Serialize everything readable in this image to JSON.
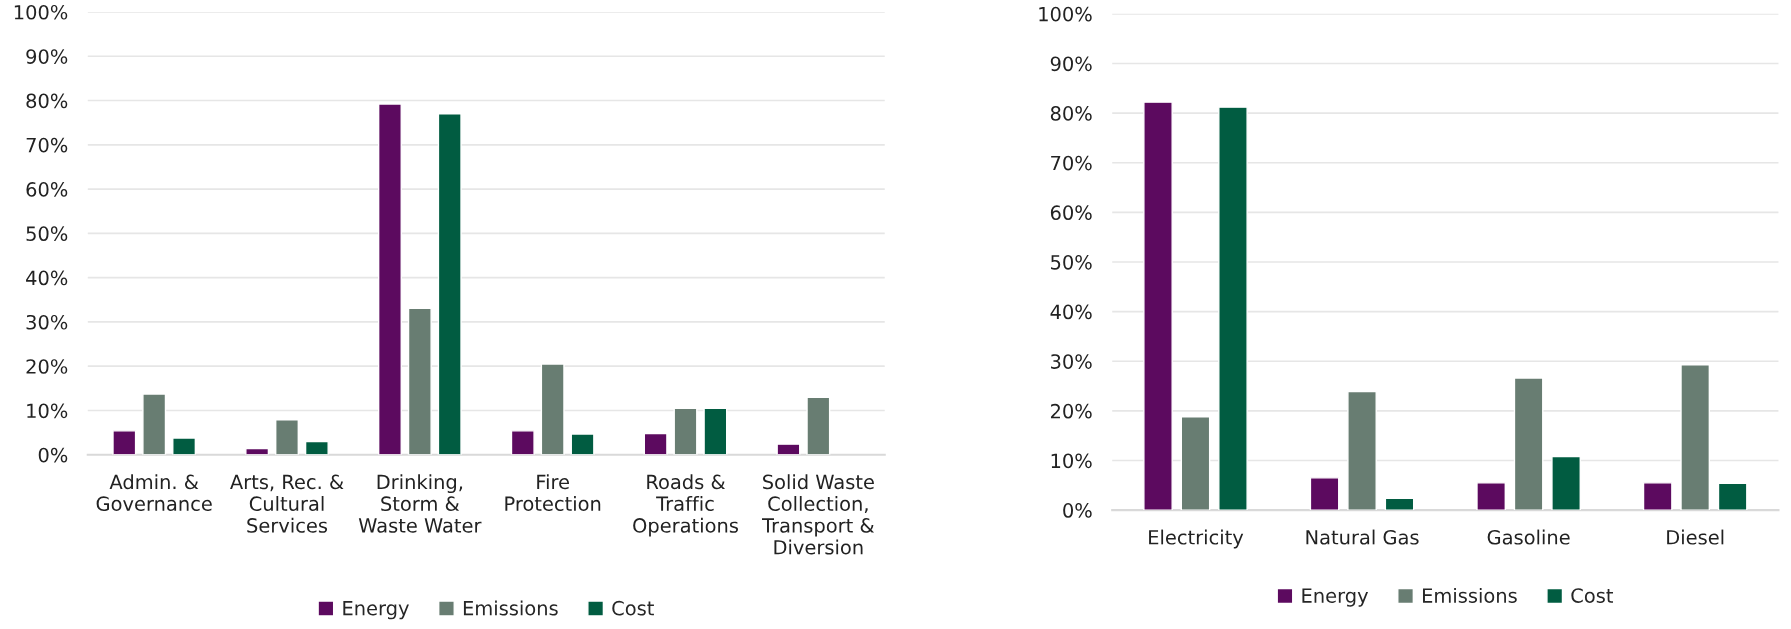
{
  "chart_data": [
    {
      "type": "bar",
      "categories": [
        "Admin. &\nGovernance",
        "Arts, Rec. &\nCultural\nServices",
        "Drinking,\nStorm &\nWaste Water",
        "Fire\nProtection",
        "Roads &\nTraffic\nOperations",
        "Solid Waste\nCollection,\nTransport &\nDiversion"
      ],
      "series": [
        {
          "name": "Energy",
          "color": "#5c0a5f",
          "values": [
            5.4,
            1.4,
            79.2,
            5.4,
            4.8,
            2.4
          ]
        },
        {
          "name": "Emissions",
          "color": "#687d72",
          "values": [
            13.7,
            7.9,
            33.1,
            20.5,
            10.5,
            13.0
          ]
        },
        {
          "name": "Cost",
          "color": "#015c41",
          "values": [
            3.8,
            3.0,
            77.0,
            4.7,
            10.5,
            null
          ]
        }
      ],
      "ylim": [
        0,
        100
      ],
      "yticks": [
        {
          "value": 0,
          "label": "0%"
        },
        {
          "value": 10,
          "label": "10%"
        },
        {
          "value": 20,
          "label": "20%"
        },
        {
          "value": 30,
          "label": "30%"
        },
        {
          "value": 40,
          "label": "40%"
        },
        {
          "value": 50,
          "label": "50%"
        },
        {
          "value": 60,
          "label": "60%"
        },
        {
          "value": 70,
          "label": "70%"
        },
        {
          "value": 80,
          "label": "80%"
        },
        {
          "value": 90,
          "label": "90%"
        },
        {
          "value": 100,
          "label": "100%"
        }
      ],
      "grid": "y",
      "legend": "bottom"
    },
    {
      "type": "bar",
      "categories": [
        "Electricity",
        "Natural Gas",
        "Gasoline",
        "Diesel"
      ],
      "series": [
        {
          "name": "Energy",
          "color": "#5c0a5f",
          "values": [
            82.2,
            6.5,
            5.5,
            5.5
          ]
        },
        {
          "name": "Emissions",
          "color": "#687d72",
          "values": [
            18.8,
            23.9,
            26.6,
            29.3
          ]
        },
        {
          "name": "Cost",
          "color": "#015c41",
          "values": [
            81.2,
            2.4,
            10.8,
            5.4
          ]
        }
      ],
      "ylim": [
        0,
        100
      ],
      "yticks": [
        {
          "value": 0,
          "label": "0%"
        },
        {
          "value": 10,
          "label": "10%"
        },
        {
          "value": 20,
          "label": "20%"
        },
        {
          "value": 30,
          "label": "30%"
        },
        {
          "value": 40,
          "label": "40%"
        },
        {
          "value": 50,
          "label": "50%"
        },
        {
          "value": 60,
          "label": "60%"
        },
        {
          "value": 70,
          "label": "70%"
        },
        {
          "value": 80,
          "label": "80%"
        },
        {
          "value": 90,
          "label": "90%"
        },
        {
          "value": 100,
          "label": "100%"
        }
      ],
      "grid": "y",
      "legend": "bottom"
    }
  ]
}
